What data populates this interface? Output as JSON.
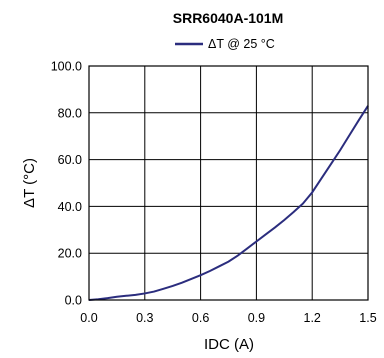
{
  "chart_data": {
    "type": "line",
    "title": "SRR6040A-101M",
    "xlabel": "IDC (A)",
    "ylabel": "ΔT (°C)",
    "xlim": [
      0,
      1.5
    ],
    "ylim": [
      0,
      100
    ],
    "x_ticks": [
      "0.0",
      "0.3",
      "0.6",
      "0.9",
      "1.2",
      "1.5"
    ],
    "y_ticks": [
      "0.0",
      "20.0",
      "40.0",
      "60.0",
      "80.0",
      "100.0"
    ],
    "grid": true,
    "legend_position": "top-center",
    "series": [
      {
        "name": "ΔT @ 25 °C",
        "color": "#2b2d7e",
        "x": [
          0,
          0.05,
          0.1,
          0.15,
          0.2,
          0.25,
          0.3,
          0.35,
          0.4,
          0.45,
          0.5,
          0.55,
          0.6,
          0.65,
          0.7,
          0.75,
          0.8,
          0.85,
          0.9,
          0.95,
          1.0,
          1.05,
          1.1,
          1.15,
          1.2,
          1.25,
          1.3,
          1.35,
          1.4,
          1.45,
          1.5
        ],
        "values": [
          0,
          0.3,
          0.8,
          1.4,
          1.8,
          2.2,
          2.8,
          3.6,
          4.8,
          6.0,
          7.4,
          9.0,
          10.6,
          12.4,
          14.4,
          16.4,
          19.0,
          22.0,
          25.0,
          28.0,
          31.0,
          34.2,
          37.6,
          41.2,
          46.0,
          52.0,
          58.0,
          64.0,
          70.4,
          76.8,
          83.0
        ]
      }
    ]
  }
}
